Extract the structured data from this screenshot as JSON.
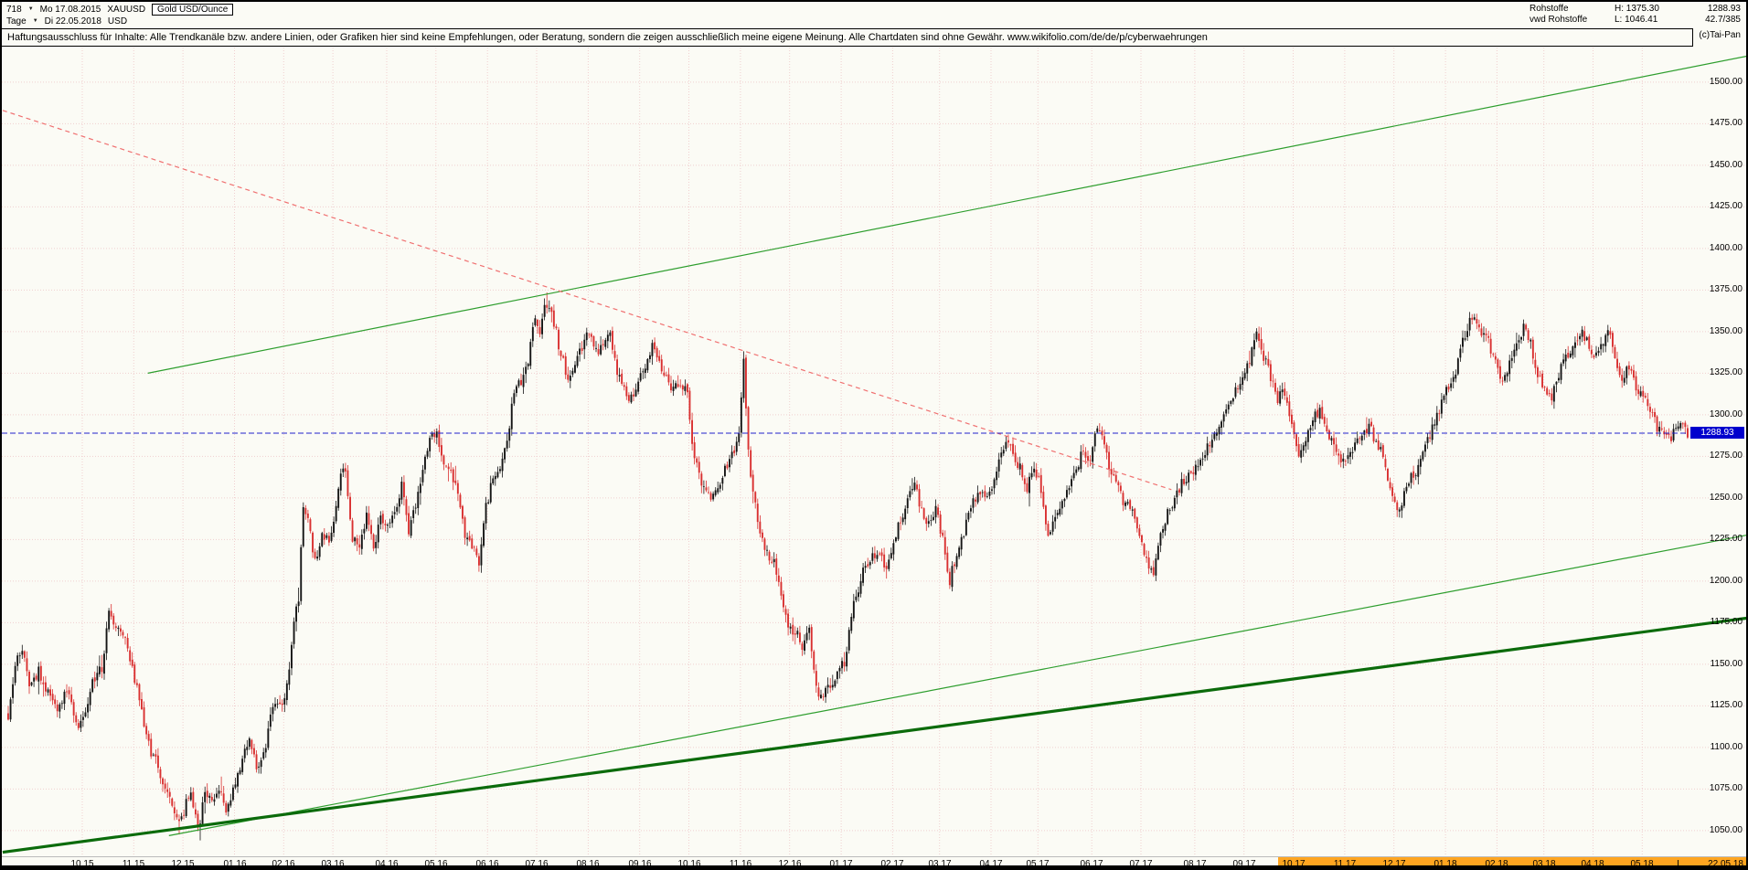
{
  "header": {
    "left": {
      "bar_count": "718",
      "start_date": "Mo 17.08.2015",
      "symbol": "XAUUSD",
      "instrument": "Gold USD/Ounce",
      "period": "Tage",
      "end_date": "Di 22.05.2018",
      "currency": "USD"
    },
    "right": {
      "category": "Rohstoffe",
      "provider": "vwd Rohstoffe",
      "high": "H: 1375.30",
      "low": "L: 1046.41",
      "last": "1288.93",
      "ratio": "42.7/385",
      "copyright": "(c)Tai-Pan"
    }
  },
  "disclaimer": "Haftungsausschluss für Inhalte: Alle Trendkanäle bzw. andere Linien, oder Grafiken hier sind keine Empfehlungen, oder Beratung, sondern die zeigen ausschließlich meine eigene Meinung. Alle Chartdaten sind ohne Gewähr.  www.wikifolio.com/de/de/p/cyberwaehrungen",
  "chart_data": {
    "type": "candlestick",
    "title": "Gold USD/Ounce (XAUUSD), Tageskerzen",
    "xlabel": "",
    "ylabel": "USD",
    "x_axis_span": "17.08.2015 - 22.05.2018",
    "bar_count": 718,
    "high_shown": 1375.3,
    "low_shown": 1046.41,
    "last_price": 1288.93,
    "last_price_label": "1288.93",
    "price_axis_range": [
      1035,
      1521
    ],
    "grid": true,
    "y_ticks": [
      "1500.00",
      "1475.00",
      "1450.00",
      "1425.00",
      "1400.00",
      "1375.00",
      "1350.00",
      "1325.00",
      "1300.00",
      "1275.00",
      "1250.00",
      "1225.00",
      "1200.00",
      "1175.00",
      "1150.00",
      "1125.00",
      "1100.00",
      "1075.00",
      "1050.00"
    ],
    "x_labels": [
      {
        "label": "10 15",
        "bar": 32
      },
      {
        "label": "11 15",
        "bar": 54
      },
      {
        "label": "12 15",
        "bar": 75
      },
      {
        "label": "01 16",
        "bar": 97
      },
      {
        "label": "02 16",
        "bar": 118
      },
      {
        "label": "03 16",
        "bar": 139
      },
      {
        "label": "04 16",
        "bar": 162
      },
      {
        "label": "05 16",
        "bar": 183
      },
      {
        "label": "06 16",
        "bar": 205
      },
      {
        "label": "07 16",
        "bar": 226
      },
      {
        "label": "08 16",
        "bar": 248
      },
      {
        "label": "09 16",
        "bar": 270
      },
      {
        "label": "10 16",
        "bar": 291
      },
      {
        "label": "11 16",
        "bar": 313
      },
      {
        "label": "12 16",
        "bar": 334
      },
      {
        "label": "01 17",
        "bar": 356
      },
      {
        "label": "02 17",
        "bar": 378
      },
      {
        "label": "03 17",
        "bar": 398
      },
      {
        "label": "04 17",
        "bar": 420
      },
      {
        "label": "05 17",
        "bar": 440
      },
      {
        "label": "06 17",
        "bar": 463
      },
      {
        "label": "07 17",
        "bar": 484
      },
      {
        "label": "08 17",
        "bar": 507
      },
      {
        "label": "09 17",
        "bar": 528
      },
      {
        "label": "10 17",
        "bar": 549
      },
      {
        "label": "11 17",
        "bar": 571
      },
      {
        "label": "12 17",
        "bar": 592
      },
      {
        "label": "01 18",
        "bar": 614
      },
      {
        "label": "02 18",
        "bar": 636
      },
      {
        "label": "03 18",
        "bar": 656
      },
      {
        "label": "04 18",
        "bar": 677
      },
      {
        "label": "05 18",
        "bar": 698
      }
    ],
    "x_end_label": "22.05.18",
    "x_last_marker": "L",
    "x_last_marker_bar": 714,
    "x_highlight_from": 24,
    "noise_amplitude": 3.5,
    "colors": {
      "up": "#151515",
      "down": "#d93030",
      "grid": "#f0cfcf",
      "trend_green": "#2e9e2e",
      "trend_green_dark": "#0b6b0b",
      "trend_red": "#f07070",
      "last_price_blue": "#2020cc",
      "price_tag_bg": "#0000cd",
      "x_highlight": "#ffa520"
    },
    "trendlines": [
      {
        "name": "upper-channel-line",
        "color": "#2e9e2e",
        "width": 1.2,
        "dash": "",
        "from": {
          "bar": 60,
          "price": 1325
        },
        "to": {
          "bar": 744,
          "price": 1516
        }
      },
      {
        "name": "lower-support-line",
        "color": "#2e9e2e",
        "width": 1.2,
        "dash": "",
        "from": {
          "bar": 69,
          "price": 1047
        },
        "to": {
          "bar": 744,
          "price": 1228
        }
      },
      {
        "name": "long-term-support-line",
        "color": "#0b6b0b",
        "width": 3.2,
        "dash": "",
        "from": {
          "bar": -2,
          "price": 1037
        },
        "to": {
          "bar": 744,
          "price": 1178
        }
      },
      {
        "name": "descending-resistance-line",
        "color": "#f07070",
        "width": 1.2,
        "dash": "5 4",
        "from": {
          "bar": -2,
          "price": 1483
        },
        "to": {
          "bar": 497,
          "price": 1255
        }
      }
    ],
    "current_price_line": {
      "price": 1288.93,
      "color": "#2020cc",
      "style": "dashed"
    },
    "close_path_anchors": [
      [
        0,
        1120
      ],
      [
        3,
        1152
      ],
      [
        6,
        1160
      ],
      [
        9,
        1138
      ],
      [
        13,
        1146
      ],
      [
        17,
        1133
      ],
      [
        21,
        1124
      ],
      [
        25,
        1135
      ],
      [
        29,
        1114
      ],
      [
        32,
        1115
      ],
      [
        36,
        1140
      ],
      [
        40,
        1148
      ],
      [
        43,
        1183
      ],
      [
        46,
        1170
      ],
      [
        50,
        1166
      ],
      [
        54,
        1142
      ],
      [
        57,
        1120
      ],
      [
        61,
        1097
      ],
      [
        65,
        1085
      ],
      [
        69,
        1068
      ],
      [
        72,
        1057
      ],
      [
        75,
        1061
      ],
      [
        78,
        1075
      ],
      [
        81,
        1049
      ],
      [
        84,
        1072
      ],
      [
        87,
        1068
      ],
      [
        90,
        1075
      ],
      [
        93,
        1060
      ],
      [
        97,
        1078
      ],
      [
        100,
        1095
      ],
      [
        103,
        1108
      ],
      [
        106,
        1087
      ],
      [
        109,
        1094
      ],
      [
        112,
        1118
      ],
      [
        115,
        1128
      ],
      [
        118,
        1128
      ],
      [
        120,
        1145
      ],
      [
        122,
        1175
      ],
      [
        124,
        1191
      ],
      [
        126,
        1247
      ],
      [
        128,
        1239
      ],
      [
        131,
        1211
      ],
      [
        134,
        1230
      ],
      [
        137,
        1222
      ],
      [
        139,
        1235
      ],
      [
        141,
        1258
      ],
      [
        144,
        1268
      ],
      [
        147,
        1226
      ],
      [
        150,
        1217
      ],
      [
        153,
        1242
      ],
      [
        156,
        1221
      ],
      [
        159,
        1236
      ],
      [
        162,
        1232
      ],
      [
        165,
        1242
      ],
      [
        168,
        1258
      ],
      [
        171,
        1230
      ],
      [
        174,
        1244
      ],
      [
        177,
        1266
      ],
      [
        180,
        1285
      ],
      [
        183,
        1290
      ],
      [
        186,
        1272
      ],
      [
        189,
        1266
      ],
      [
        192,
        1252
      ],
      [
        195,
        1227
      ],
      [
        198,
        1220
      ],
      [
        201,
        1212
      ],
      [
        204,
        1244
      ],
      [
        207,
        1262
      ],
      [
        210,
        1270
      ],
      [
        213,
        1281
      ],
      [
        216,
        1315
      ],
      [
        219,
        1320
      ],
      [
        222,
        1332
      ],
      [
        225,
        1358
      ],
      [
        227,
        1346
      ],
      [
        229,
        1367
      ],
      [
        231,
        1362
      ],
      [
        233,
        1356
      ],
      [
        236,
        1335
      ],
      [
        239,
        1323
      ],
      [
        242,
        1331
      ],
      [
        245,
        1340
      ],
      [
        248,
        1351
      ],
      [
        251,
        1338
      ],
      [
        254,
        1342
      ],
      [
        257,
        1348
      ],
      [
        260,
        1324
      ],
      [
        263,
        1316
      ],
      [
        266,
        1309
      ],
      [
        269,
        1323
      ],
      [
        272,
        1327
      ],
      [
        275,
        1340
      ],
      [
        278,
        1331
      ],
      [
        281,
        1322
      ],
      [
        284,
        1316
      ],
      [
        287,
        1320
      ],
      [
        290,
        1313
      ],
      [
        292,
        1283
      ],
      [
        294,
        1269
      ],
      [
        297,
        1256
      ],
      [
        300,
        1252
      ],
      [
        303,
        1258
      ],
      [
        306,
        1266
      ],
      [
        309,
        1275
      ],
      [
        312,
        1290
      ],
      [
        314,
        1332
      ],
      [
        316,
        1280
      ],
      [
        318,
        1252
      ],
      [
        321,
        1228
      ],
      [
        324,
        1218
      ],
      [
        327,
        1211
      ],
      [
        330,
        1189
      ],
      [
        333,
        1173
      ],
      [
        336,
        1170
      ],
      [
        339,
        1160
      ],
      [
        342,
        1174
      ],
      [
        345,
        1135
      ],
      [
        348,
        1131
      ],
      [
        351,
        1138
      ],
      [
        354,
        1145
      ],
      [
        357,
        1151
      ],
      [
        360,
        1180
      ],
      [
        363,
        1196
      ],
      [
        366,
        1210
      ],
      [
        369,
        1217
      ],
      [
        372,
        1216
      ],
      [
        375,
        1208
      ],
      [
        378,
        1225
      ],
      [
        381,
        1237
      ],
      [
        384,
        1249
      ],
      [
        387,
        1257
      ],
      [
        390,
        1243
      ],
      [
        393,
        1235
      ],
      [
        396,
        1245
      ],
      [
        399,
        1225
      ],
      [
        402,
        1200
      ],
      [
        405,
        1218
      ],
      [
        408,
        1230
      ],
      [
        411,
        1247
      ],
      [
        414,
        1251
      ],
      [
        417,
        1254
      ],
      [
        420,
        1254
      ],
      [
        423,
        1270
      ],
      [
        426,
        1286
      ],
      [
        429,
        1278
      ],
      [
        432,
        1268
      ],
      [
        435,
        1256
      ],
      [
        438,
        1268
      ],
      [
        441,
        1256
      ],
      [
        444,
        1227
      ],
      [
        447,
        1236
      ],
      [
        450,
        1246
      ],
      [
        453,
        1255
      ],
      [
        456,
        1266
      ],
      [
        459,
        1280
      ],
      [
        462,
        1272
      ],
      [
        465,
        1293
      ],
      [
        468,
        1280
      ],
      [
        471,
        1266
      ],
      [
        474,
        1255
      ],
      [
        477,
        1246
      ],
      [
        480,
        1242
      ],
      [
        483,
        1230
      ],
      [
        486,
        1211
      ],
      [
        489,
        1207
      ],
      [
        492,
        1229
      ],
      [
        495,
        1240
      ],
      [
        498,
        1248
      ],
      [
        501,
        1258
      ],
      [
        504,
        1264
      ],
      [
        507,
        1268
      ],
      [
        510,
        1273
      ],
      [
        513,
        1283
      ],
      [
        516,
        1292
      ],
      [
        519,
        1301
      ],
      [
        522,
        1311
      ],
      [
        525,
        1316
      ],
      [
        528,
        1322
      ],
      [
        530,
        1334
      ],
      [
        533,
        1351
      ],
      [
        536,
        1335
      ],
      [
        539,
        1322
      ],
      [
        542,
        1310
      ],
      [
        545,
        1315
      ],
      [
        548,
        1295
      ],
      [
        551,
        1273
      ],
      [
        554,
        1285
      ],
      [
        557,
        1299
      ],
      [
        560,
        1303
      ],
      [
        563,
        1292
      ],
      [
        566,
        1280
      ],
      [
        569,
        1271
      ],
      [
        572,
        1277
      ],
      [
        575,
        1280
      ],
      [
        578,
        1288
      ],
      [
        581,
        1294
      ],
      [
        584,
        1282
      ],
      [
        587,
        1275
      ],
      [
        590,
        1256
      ],
      [
        593,
        1241
      ],
      [
        596,
        1252
      ],
      [
        599,
        1264
      ],
      [
        602,
        1268
      ],
      [
        605,
        1281
      ],
      [
        608,
        1291
      ],
      [
        611,
        1303
      ],
      [
        614,
        1317
      ],
      [
        617,
        1320
      ],
      [
        620,
        1339
      ],
      [
        623,
        1352
      ],
      [
        626,
        1362
      ],
      [
        629,
        1348
      ],
      [
        632,
        1345
      ],
      [
        635,
        1330
      ],
      [
        638,
        1317
      ],
      [
        641,
        1330
      ],
      [
        644,
        1342
      ],
      [
        647,
        1353
      ],
      [
        650,
        1343
      ],
      [
        653,
        1323
      ],
      [
        656,
        1315
      ],
      [
        659,
        1310
      ],
      [
        662,
        1325
      ],
      [
        665,
        1333
      ],
      [
        668,
        1340
      ],
      [
        671,
        1350
      ],
      [
        674,
        1345
      ],
      [
        677,
        1333
      ],
      [
        680,
        1340
      ],
      [
        683,
        1353
      ],
      [
        686,
        1336
      ],
      [
        689,
        1322
      ],
      [
        692,
        1328
      ],
      [
        695,
        1315
      ],
      [
        698,
        1313
      ],
      [
        701,
        1303
      ],
      [
        704,
        1293
      ],
      [
        707,
        1291
      ],
      [
        710,
        1287
      ],
      [
        713,
        1293
      ],
      [
        717,
        1289
      ]
    ]
  }
}
